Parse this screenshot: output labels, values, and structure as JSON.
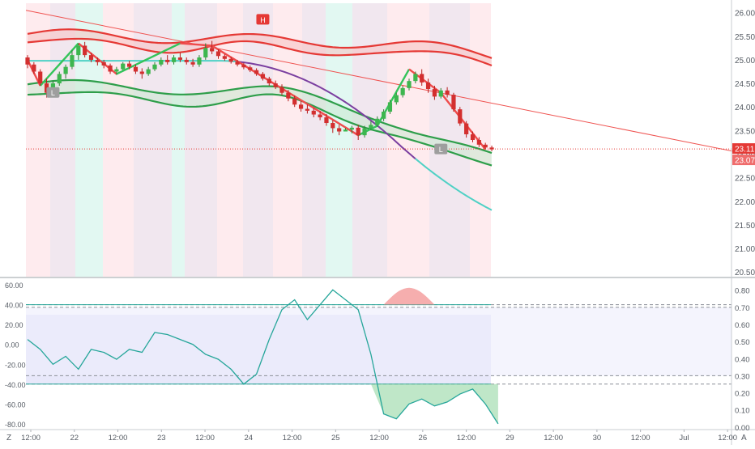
{
  "chart_data": [
    {
      "type": "candlestick",
      "y_axis": {
        "ticks": [
          "26.00",
          "25.50",
          "25.00",
          "24.50",
          "24.00",
          "23.50",
          "23.00",
          "22.50",
          "22.00",
          "21.50",
          "21.00",
          "20.50"
        ],
        "ylim": [
          20.4,
          26.2
        ]
      },
      "last_price_label": "23.11",
      "prev_price_label": "23.07",
      "last_price": 23.11,
      "prev_price": 23.07,
      "markers": [
        {
          "label": "H",
          "x": 37,
          "y": 25.85,
          "color": "#e53935"
        },
        {
          "label": "L",
          "x": 4,
          "y": 24.3,
          "color": "#9e9e9e"
        },
        {
          "label": "L",
          "x": 65,
          "y": 23.1,
          "color": "#9e9e9e"
        }
      ],
      "candles": [
        [
          0,
          25.05,
          25.1,
          24.82,
          24.9
        ],
        [
          1,
          24.9,
          24.95,
          24.7,
          24.75
        ],
        [
          2,
          24.75,
          24.8,
          24.45,
          24.5
        ],
        [
          3,
          24.5,
          24.6,
          24.2,
          24.3
        ],
        [
          4,
          24.3,
          24.55,
          24.28,
          24.5
        ],
        [
          5,
          24.5,
          24.75,
          24.45,
          24.7
        ],
        [
          6,
          24.7,
          24.9,
          24.6,
          24.85
        ],
        [
          7,
          24.85,
          25.2,
          24.8,
          25.1
        ],
        [
          8,
          25.1,
          25.35,
          25.0,
          25.3
        ],
        [
          9,
          25.3,
          25.38,
          25.05,
          25.1
        ],
        [
          10,
          25.1,
          25.15,
          24.95,
          25.0
        ],
        [
          11,
          25.0,
          25.05,
          24.88,
          24.95
        ],
        [
          12,
          24.95,
          25.0,
          24.82,
          24.88
        ],
        [
          13,
          24.88,
          24.92,
          24.7,
          24.75
        ],
        [
          14,
          24.75,
          24.85,
          24.68,
          24.8
        ],
        [
          15,
          24.8,
          24.95,
          24.78,
          24.92
        ],
        [
          16,
          24.92,
          24.98,
          24.8,
          24.85
        ],
        [
          17,
          24.85,
          24.9,
          24.7,
          24.75
        ],
        [
          18,
          24.75,
          24.82,
          24.6,
          24.7
        ],
        [
          19,
          24.7,
          24.85,
          24.66,
          24.8
        ],
        [
          20,
          24.8,
          24.95,
          24.76,
          24.9
        ],
        [
          21,
          24.9,
          25.05,
          24.86,
          25.0
        ],
        [
          22,
          25.0,
          25.1,
          24.9,
          24.95
        ],
        [
          23,
          24.95,
          25.1,
          24.9,
          25.05
        ],
        [
          24,
          25.05,
          25.15,
          24.95,
          25.0
        ],
        [
          25,
          25.0,
          25.05,
          24.9,
          24.95
        ],
        [
          26,
          24.95,
          25.02,
          24.85,
          24.9
        ],
        [
          27,
          24.9,
          25.1,
          24.85,
          25.05
        ],
        [
          28,
          25.05,
          25.35,
          25.0,
          25.25
        ],
        [
          29,
          25.25,
          25.4,
          25.12,
          25.18
        ],
        [
          30,
          25.18,
          25.22,
          25.02,
          25.08
        ],
        [
          31,
          25.08,
          25.12,
          24.98,
          25.02
        ],
        [
          32,
          25.02,
          25.06,
          24.92,
          24.96
        ],
        [
          33,
          24.96,
          25.0,
          24.86,
          24.9
        ],
        [
          34,
          24.9,
          24.94,
          24.8,
          24.84
        ],
        [
          35,
          24.84,
          24.88,
          24.74,
          24.78
        ],
        [
          36,
          24.78,
          24.82,
          24.66,
          24.7
        ],
        [
          37,
          24.7,
          24.74,
          24.56,
          24.6
        ],
        [
          38,
          24.6,
          24.64,
          24.45,
          24.5
        ],
        [
          39,
          24.5,
          24.56,
          24.38,
          24.42
        ],
        [
          40,
          24.42,
          24.48,
          24.25,
          24.3
        ],
        [
          41,
          24.3,
          24.36,
          24.12,
          24.18
        ],
        [
          42,
          24.18,
          24.24,
          24.0,
          24.05
        ],
        [
          43,
          24.05,
          24.12,
          23.9,
          23.96
        ],
        [
          44,
          23.96,
          24.05,
          23.86,
          23.92
        ],
        [
          45,
          23.92,
          23.98,
          23.78,
          23.84
        ],
        [
          46,
          23.84,
          23.92,
          23.72,
          23.78
        ],
        [
          47,
          23.78,
          23.85,
          23.6,
          23.66
        ],
        [
          48,
          23.66,
          23.72,
          23.45,
          23.55
        ],
        [
          49,
          23.55,
          23.62,
          23.4,
          23.48
        ],
        [
          50,
          23.48,
          23.55,
          23.5,
          23.52
        ],
        [
          51,
          23.52,
          23.6,
          23.44,
          23.56
        ],
        [
          52,
          23.56,
          23.62,
          23.3,
          23.4
        ],
        [
          53,
          23.4,
          23.6,
          23.35,
          23.55
        ],
        [
          54,
          23.55,
          23.7,
          23.5,
          23.62
        ],
        [
          55,
          23.62,
          23.8,
          23.58,
          23.75
        ],
        [
          56,
          23.75,
          23.95,
          23.7,
          23.9
        ],
        [
          57,
          23.9,
          24.15,
          23.85,
          24.1
        ],
        [
          58,
          24.1,
          24.3,
          24.05,
          24.25
        ],
        [
          59,
          24.25,
          24.45,
          24.2,
          24.4
        ],
        [
          60,
          24.4,
          24.6,
          24.35,
          24.55
        ],
        [
          61,
          24.55,
          24.75,
          24.5,
          24.7
        ],
        [
          62,
          24.7,
          24.8,
          24.45,
          24.52
        ],
        [
          63,
          24.52,
          24.6,
          24.3,
          24.38
        ],
        [
          64,
          24.38,
          24.45,
          24.15,
          24.22
        ],
        [
          65,
          24.22,
          24.4,
          24.18,
          24.35
        ],
        [
          66,
          24.35,
          24.42,
          24.2,
          24.26
        ],
        [
          67,
          24.26,
          24.3,
          23.9,
          23.95
        ],
        [
          68,
          23.95,
          24.0,
          23.6,
          23.65
        ],
        [
          69,
          23.65,
          23.7,
          23.35,
          23.42
        ],
        [
          70,
          23.42,
          23.48,
          23.25,
          23.3
        ],
        [
          71,
          23.3,
          23.36,
          23.15,
          23.2
        ],
        [
          72,
          23.2,
          23.24,
          23.1,
          23.14
        ],
        [
          73,
          23.14,
          23.18,
          23.06,
          23.1
        ]
      ]
    },
    {
      "type": "line",
      "y_axis_left": {
        "ticks": [
          "60.00",
          "40.00",
          "20.00",
          "0.00",
          "-20.00",
          "-40.00",
          "-60.00",
          "-80.00"
        ],
        "ylim": [
          -85,
          65
        ]
      },
      "y_axis_right": {
        "ticks": [
          "0.80",
          "0.70",
          "0.60",
          "0.50",
          "0.40",
          "0.30",
          "0.20",
          "0.10",
          "0.00"
        ],
        "ylim": [
          -0.01,
          0.86
        ]
      },
      "upper_band": 40,
      "lower_band": -40,
      "upper_band_right": 0.7,
      "lower_band_right": 0.3,
      "x": [
        0,
        2,
        4,
        6,
        8,
        10,
        12,
        14,
        16,
        18,
        20,
        22,
        24,
        26,
        28,
        30,
        32,
        34,
        36,
        38,
        40,
        42,
        44,
        46,
        48,
        50,
        52,
        54,
        56,
        58,
        60,
        62,
        64,
        66,
        68,
        70,
        72,
        74
      ],
      "values": [
        5,
        -5,
        -20,
        -12,
        -25,
        -5,
        -8,
        -15,
        -5,
        -8,
        12,
        10,
        5,
        0,
        -10,
        -15,
        -25,
        -40,
        -30,
        5,
        35,
        45,
        25,
        40,
        55,
        45,
        35,
        -10,
        -70,
        -75,
        -60,
        -55,
        -62,
        -58,
        -50,
        -45,
        -60,
        -80
      ]
    }
  ],
  "x_axis": {
    "labels": [
      "12:00",
      "22",
      "12:00",
      "23",
      "12:00",
      "24",
      "12:00",
      "25",
      "12:00",
      "26",
      "12:00",
      "29",
      "12:00",
      "30",
      "12:00",
      "Jul",
      "12:00"
    ],
    "positions": [
      0,
      8,
      16,
      24,
      32,
      40,
      48,
      56,
      64,
      72,
      80,
      88,
      96,
      104,
      112,
      120,
      128
    ]
  },
  "corner_left": "Z",
  "corner_right": "A"
}
